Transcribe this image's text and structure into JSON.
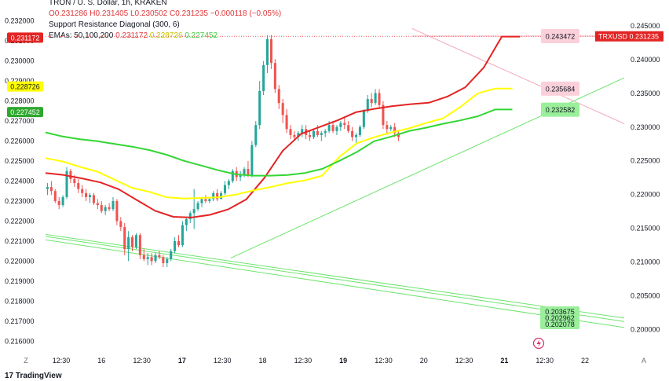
{
  "legend": {
    "title": "TRON / U. S. Dollar, 1h, KRAKEN",
    "ohlc": "O0.231286  H0.231405  L0.230502  C0.231235  −0.000118 (−0.05%)",
    "sr_title": "Support Resistance Diagonal (300, 6)",
    "ema_label": "EMAs: 50,100,200",
    "ema_values": [
      "0.231172",
      "0.228726",
      "0.227452"
    ]
  },
  "brand": {
    "logo_text": "TradingView",
    "logo_mark": "17"
  },
  "colors": {
    "up": "#26a69a",
    "down": "#ef5350",
    "ema50": "#e32424",
    "ema100": "#ffff00",
    "ema200": "#33d633",
    "resistance": "#f4a6b8",
    "support": "#6ee46e",
    "price_line": "#ef5350"
  },
  "chart_data": {
    "type": "candlestick",
    "title": "TRON / U. S. Dollar, 1h, KRAKEN",
    "left_axis": {
      "ticks": [
        "0.232000",
        "0.231000",
        "0.230000",
        "0.229000",
        "0.228000",
        "0.227000",
        "0.226000",
        "0.225000",
        "0.224000",
        "0.223000",
        "0.222000",
        "0.221000",
        "0.220000",
        "0.219000",
        "0.218000",
        "0.217000",
        "0.216000"
      ],
      "range": [
        0.2155,
        0.2325
      ]
    },
    "right_axis": {
      "ticks": [
        "0.245000",
        "0.240000",
        "0.235000",
        "0.230000",
        "0.225000",
        "0.220000",
        "0.215000",
        "0.210000",
        "0.205000",
        "0.200000"
      ],
      "range": [
        0.1968,
        0.2472
      ]
    },
    "x_axis": {
      "ticks": [
        "12:30",
        "16",
        "12:30",
        "17",
        "12:30",
        "18",
        "12:30",
        "19",
        "12:30",
        "20",
        "12:30",
        "21",
        "12:30",
        "22"
      ],
      "bold": [
        "17",
        "19",
        "21"
      ],
      "left_corner": "Z",
      "right_corner": "A"
    },
    "x_range": [
      0,
      150
    ],
    "candles": [
      [
        0.2236,
        0.2239,
        0.2233,
        0.2237
      ],
      [
        0.2237,
        0.224,
        0.2233,
        0.2235
      ],
      [
        0.2235,
        0.2236,
        0.2229,
        0.223
      ],
      [
        0.223,
        0.2232,
        0.2226,
        0.2228
      ],
      [
        0.2228,
        0.2233,
        0.2227,
        0.2232
      ],
      [
        0.2232,
        0.2247,
        0.2231,
        0.2245
      ],
      [
        0.2245,
        0.2246,
        0.2239,
        0.2241
      ],
      [
        0.2241,
        0.2243,
        0.2237,
        0.2239
      ],
      [
        0.2239,
        0.2241,
        0.2234,
        0.2236
      ],
      [
        0.2236,
        0.2238,
        0.2232,
        0.2234
      ],
      [
        0.2234,
        0.2236,
        0.223,
        0.2232
      ],
      [
        0.2232,
        0.2234,
        0.2229,
        0.2233
      ],
      [
        0.2233,
        0.2234,
        0.2228,
        0.2229
      ],
      [
        0.2229,
        0.2231,
        0.2226,
        0.2228
      ],
      [
        0.2228,
        0.223,
        0.2224,
        0.2225
      ],
      [
        0.2225,
        0.2228,
        0.2223,
        0.2227
      ],
      [
        0.2227,
        0.2229,
        0.2225,
        0.2226
      ],
      [
        0.2226,
        0.2232,
        0.2225,
        0.223
      ],
      [
        0.223,
        0.2231,
        0.2218,
        0.222
      ],
      [
        0.222,
        0.2222,
        0.2215,
        0.2217
      ],
      [
        0.2217,
        0.2219,
        0.2203,
        0.2206
      ],
      [
        0.2206,
        0.2215,
        0.22,
        0.2212
      ],
      [
        0.2212,
        0.2213,
        0.2205,
        0.2207
      ],
      [
        0.2207,
        0.2214,
        0.2206,
        0.2213
      ],
      [
        0.2213,
        0.2214,
        0.2201,
        0.2203
      ],
      [
        0.2203,
        0.2206,
        0.22,
        0.2201
      ],
      [
        0.2201,
        0.2204,
        0.2198,
        0.2202
      ],
      [
        0.2202,
        0.2204,
        0.2198,
        0.22
      ],
      [
        0.22,
        0.2204,
        0.2199,
        0.2203
      ],
      [
        0.2203,
        0.2205,
        0.2201,
        0.2202
      ],
      [
        0.2202,
        0.2203,
        0.2197,
        0.2199
      ],
      [
        0.2199,
        0.2202,
        0.2197,
        0.2201
      ],
      [
        0.2201,
        0.2206,
        0.22,
        0.2205
      ],
      [
        0.2205,
        0.2212,
        0.2204,
        0.221
      ],
      [
        0.221,
        0.2213,
        0.2207,
        0.2208
      ],
      [
        0.2208,
        0.222,
        0.2207,
        0.2218
      ],
      [
        0.2218,
        0.2222,
        0.2215,
        0.2221
      ],
      [
        0.2221,
        0.2225,
        0.2219,
        0.2224
      ],
      [
        0.2224,
        0.2236,
        0.2216,
        0.2226
      ],
      [
        0.2226,
        0.223,
        0.2225,
        0.2229
      ],
      [
        0.2229,
        0.2232,
        0.2227,
        0.2231
      ],
      [
        0.2231,
        0.2233,
        0.2229,
        0.223
      ],
      [
        0.223,
        0.2232,
        0.2229,
        0.2231
      ],
      [
        0.2231,
        0.2235,
        0.223,
        0.2234
      ],
      [
        0.2234,
        0.2236,
        0.223,
        0.2231
      ],
      [
        0.2231,
        0.2235,
        0.2231,
        0.2234
      ],
      [
        0.2234,
        0.224,
        0.2233,
        0.2238
      ],
      [
        0.2238,
        0.2241,
        0.2236,
        0.224
      ],
      [
        0.224,
        0.2246,
        0.2239,
        0.2245
      ],
      [
        0.2245,
        0.2247,
        0.224,
        0.2242
      ],
      [
        0.2242,
        0.2245,
        0.224,
        0.2243
      ],
      [
        0.2243,
        0.2247,
        0.2242,
        0.2246
      ],
      [
        0.2246,
        0.225,
        0.2242,
        0.2243
      ],
      [
        0.2243,
        0.226,
        0.2242,
        0.2258
      ],
      [
        0.2258,
        0.227,
        0.2257,
        0.2268
      ],
      [
        0.2268,
        0.229,
        0.2266,
        0.2285
      ],
      [
        0.2285,
        0.23,
        0.2283,
        0.2298
      ],
      [
        0.2298,
        0.2313,
        0.2294,
        0.2311
      ],
      [
        0.2311,
        0.2313,
        0.2296,
        0.2299
      ],
      [
        0.2299,
        0.2301,
        0.2284,
        0.2286
      ],
      [
        0.2286,
        0.2288,
        0.2276,
        0.2279
      ],
      [
        0.2279,
        0.2281,
        0.2269,
        0.2273
      ],
      [
        0.2273,
        0.2276,
        0.2264,
        0.2266
      ],
      [
        0.2266,
        0.2268,
        0.2261,
        0.2263
      ],
      [
        0.2263,
        0.2265,
        0.226,
        0.2262
      ],
      [
        0.2262,
        0.2265,
        0.226,
        0.2264
      ],
      [
        0.2264,
        0.2268,
        0.2262,
        0.2266
      ],
      [
        0.2266,
        0.2268,
        0.2261,
        0.2263
      ],
      [
        0.2263,
        0.2265,
        0.226,
        0.2262
      ],
      [
        0.2262,
        0.2266,
        0.2261,
        0.2265
      ],
      [
        0.2265,
        0.2268,
        0.2262,
        0.2263
      ],
      [
        0.2263,
        0.2265,
        0.226,
        0.2264
      ],
      [
        0.2264,
        0.2266,
        0.2262,
        0.2265
      ],
      [
        0.2265,
        0.227,
        0.2264,
        0.2268
      ],
      [
        0.2268,
        0.227,
        0.2264,
        0.2265
      ],
      [
        0.2265,
        0.2268,
        0.2263,
        0.2267
      ],
      [
        0.2267,
        0.227,
        0.2265,
        0.2269
      ],
      [
        0.2269,
        0.2272,
        0.2266,
        0.2268
      ],
      [
        0.2268,
        0.227,
        0.2264,
        0.2265
      ],
      [
        0.2265,
        0.2267,
        0.226,
        0.2262
      ],
      [
        0.2262,
        0.2264,
        0.2259,
        0.2263
      ],
      [
        0.2263,
        0.2268,
        0.2262,
        0.2267
      ],
      [
        0.2267,
        0.2276,
        0.2266,
        0.2275
      ],
      [
        0.2275,
        0.2283,
        0.2274,
        0.2281
      ],
      [
        0.2281,
        0.2284,
        0.2277,
        0.2279
      ],
      [
        0.2279,
        0.2286,
        0.2278,
        0.2284
      ],
      [
        0.2284,
        0.2286,
        0.2276,
        0.2278
      ],
      [
        0.2278,
        0.228,
        0.2266,
        0.2268
      ],
      [
        0.2268,
        0.227,
        0.2264,
        0.2266
      ],
      [
        0.2266,
        0.2268,
        0.2265,
        0.2267
      ],
      [
        0.2267,
        0.2269,
        0.2262,
        0.2264
      ],
      [
        0.2264,
        0.2265,
        0.226,
        0.2262
      ]
    ],
    "series": [
      {
        "name": "EMA 50",
        "last": 0.231172,
        "values": [
          0.2232,
          0.2229,
          0.2224,
          0.2218,
          0.2208,
          0.2192,
          0.2176,
          0.2167,
          0.2166,
          0.217,
          0.2178,
          0.2193,
          0.2225,
          0.2265,
          0.229,
          0.23,
          0.231,
          0.2322,
          0.2327,
          0.2331,
          0.2334,
          0.2336,
          0.2345,
          0.2359,
          0.2388,
          0.2434,
          0.2434
        ]
      },
      {
        "name": "EMA 100",
        "last": 0.228726,
        "values": [
          0.2254,
          0.2249,
          0.2241,
          0.2234,
          0.2222,
          0.221,
          0.2204,
          0.2196,
          0.2194,
          0.2195,
          0.2196,
          0.22,
          0.2206,
          0.2211,
          0.2217,
          0.2221,
          0.2228,
          0.2256,
          0.2276,
          0.2285,
          0.2292,
          0.2298,
          0.2306,
          0.2313,
          0.233,
          0.235,
          0.2357,
          0.2357
        ]
      },
      {
        "name": "EMA 200",
        "last": 0.227452,
        "values": [
          0.2292,
          0.2286,
          0.2282,
          0.2279,
          0.2275,
          0.2271,
          0.2266,
          0.2259,
          0.225,
          0.2243,
          0.2236,
          0.223,
          0.2228,
          0.2228,
          0.2229,
          0.2232,
          0.2238,
          0.225,
          0.2263,
          0.2279,
          0.2286,
          0.2294,
          0.2299,
          0.2305,
          0.231,
          0.2316,
          0.2326,
          0.2326
        ]
      }
    ],
    "resistance_line": {
      "value": 0.243472,
      "from": [
        95,
        0.2446
      ],
      "to": [
        150,
        0.2305
      ]
    },
    "diagonal_lines": [
      {
        "from": [
          48,
          0.2106
        ],
        "to": [
          150,
          0.2373
        ]
      },
      {
        "from": [
          0,
          0.2141
        ],
        "to": [
          150,
          0.2017
        ]
      },
      {
        "from": [
          0,
          0.2138
        ],
        "to": [
          150,
          0.2012
        ]
      },
      {
        "from": [
          0,
          0.2133
        ],
        "to": [
          150,
          0.2003
        ]
      }
    ],
    "price_labels": [
      {
        "axis": "left",
        "value": 0.231172,
        "text": "0.231172",
        "bg": "#e32424",
        "fg": "#ffffff"
      },
      {
        "axis": "left",
        "value": 0.228726,
        "text": "0.228726",
        "bg": "#ffff00",
        "fg": "#131722"
      },
      {
        "axis": "left",
        "value": 0.227452,
        "text": "0.227452",
        "bg": "#2fa72f",
        "fg": "#ffffff"
      },
      {
        "axis": "right",
        "value": 0.231235,
        "text": "TRXUSD  0.231235",
        "bg": "#e32424",
        "fg": "#ffffff"
      }
    ],
    "level_labels": [
      {
        "value": 0.243472,
        "text": "0.243472",
        "bg": "#fbd0da"
      },
      {
        "value": 0.235684,
        "text": "0.235684",
        "bg": "#fbd0da"
      },
      {
        "value": 0.232582,
        "text": "0.232582",
        "bg": "#9aef9a"
      }
    ],
    "support_labels": {
      "texts": [
        "0.203675",
        "0.202962",
        "0.202078"
      ],
      "bg": "#9aef9a"
    },
    "last_price": 0.231235
  }
}
